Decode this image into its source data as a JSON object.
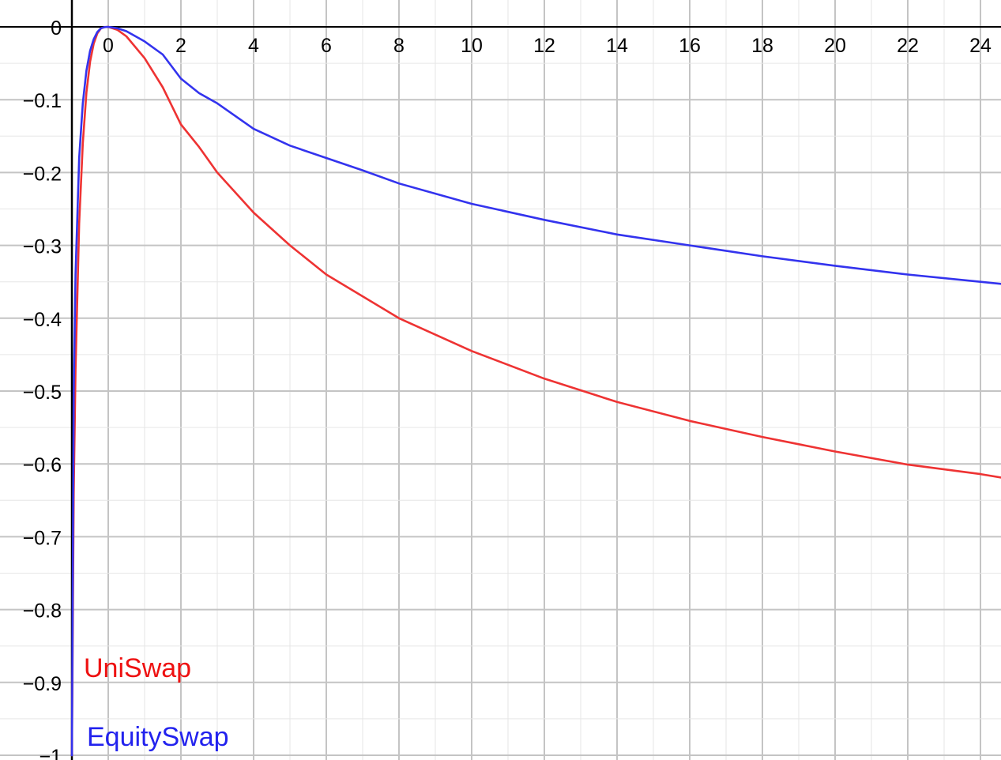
{
  "chart_data": {
    "type": "line",
    "title": "",
    "xlabel": "",
    "ylabel": "",
    "xlim": [
      -1,
      24.6
    ],
    "ylim": [
      -1,
      0.02
    ],
    "grid": true,
    "x_ticks": [
      0,
      2,
      4,
      6,
      8,
      10,
      12,
      14,
      16,
      18,
      20,
      22,
      24
    ],
    "x_tick_labels": [
      "0",
      "2",
      "4",
      "6",
      "8",
      "10",
      "12",
      "14",
      "16",
      "18",
      "20",
      "22",
      "24"
    ],
    "y_ticks": [
      0,
      -0.1,
      -0.2,
      -0.3,
      -0.4,
      -0.5,
      -0.6,
      -0.7,
      -0.8,
      -0.9,
      -1
    ],
    "y_tick_labels": [
      "0",
      "−0.1",
      "−0.2",
      "−0.3",
      "−0.4",
      "−0.5",
      "−0.6",
      "−0.7",
      "−0.8",
      "−0.9",
      "−1"
    ],
    "series": [
      {
        "name": "UniSwap",
        "color": "#ee3333",
        "x": [
          -1,
          -0.95,
          -0.9,
          -0.8,
          -0.7,
          -0.6,
          -0.5,
          -0.4,
          -0.3,
          -0.2,
          -0.1,
          0,
          0.25,
          0.5,
          1,
          1.5,
          2,
          2.5,
          3,
          4,
          5,
          6,
          7,
          8,
          10,
          12,
          14,
          16,
          18,
          20,
          22,
          24,
          24.6
        ],
        "values": [
          -1,
          -0.64,
          -0.47,
          -0.27,
          -0.16,
          -0.09,
          -0.048,
          -0.023,
          -0.009,
          -0.002,
          -0.0003,
          0,
          -0.004,
          -0.013,
          -0.043,
          -0.083,
          -0.134,
          -0.165,
          -0.2,
          -0.255,
          -0.3,
          -0.34,
          -0.37,
          -0.4,
          -0.445,
          -0.483,
          -0.515,
          -0.541,
          -0.563,
          -0.583,
          -0.601,
          -0.614,
          -0.619
        ]
      },
      {
        "name": "EquitySwap",
        "color": "#3333ee",
        "x": [
          -1,
          -0.95,
          -0.9,
          -0.8,
          -0.7,
          -0.6,
          -0.5,
          -0.4,
          -0.3,
          -0.2,
          -0.1,
          0,
          0.25,
          0.5,
          1,
          1.5,
          2,
          2.5,
          3,
          4,
          5,
          6,
          7,
          8,
          10,
          12,
          14,
          16,
          18,
          20,
          22,
          24,
          24.6
        ],
        "values": [
          -1,
          -0.5,
          -0.34,
          -0.18,
          -0.105,
          -0.06,
          -0.033,
          -0.017,
          -0.007,
          -0.002,
          -0.0003,
          0,
          -0.002,
          -0.006,
          -0.02,
          -0.038,
          -0.071,
          -0.091,
          -0.105,
          -0.14,
          -0.163,
          -0.18,
          -0.197,
          -0.215,
          -0.243,
          -0.265,
          -0.285,
          -0.3,
          -0.315,
          -0.328,
          -0.34,
          -0.35,
          -0.353
        ]
      }
    ],
    "legend": {
      "placement": "bottom-left",
      "entries": [
        "UniSwap",
        "EquitySwap"
      ]
    }
  }
}
